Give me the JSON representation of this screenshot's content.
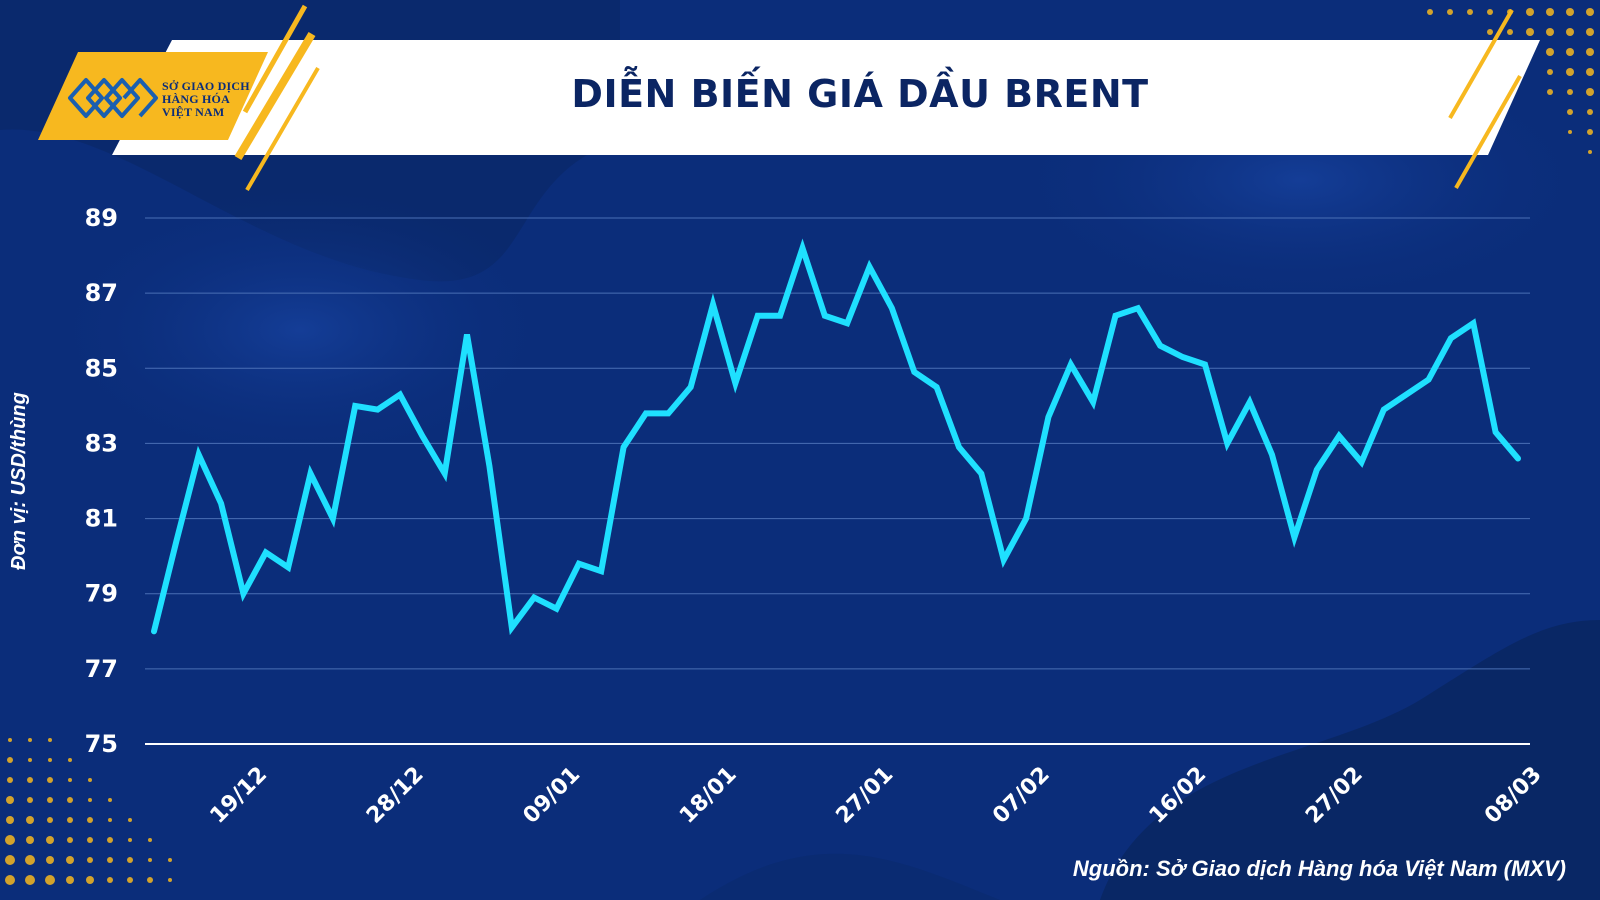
{
  "header": {
    "logo_lines": [
      "SỞ GIAO DỊCH",
      "HÀNG HÓA",
      "VIỆT NAM"
    ],
    "title": "DIỄN BIẾN GIÁ DẦU BRENT"
  },
  "footer": {
    "source": "Nguồn: Sở Giao dịch Hàng hóa Việt Nam (MXV)"
  },
  "colors": {
    "background": "#0b2d7a",
    "line": "#1fe0ff",
    "accent": "#f7b81f",
    "grid": "#4a6fb5"
  },
  "chart_data": {
    "type": "line",
    "title": "DIỄN BIẾN GIÁ DẦU BRENT",
    "ylabel": "Đơn vị: USD/thùng",
    "xlabel": "",
    "ylim": [
      75,
      89
    ],
    "yticks": [
      75,
      77,
      79,
      81,
      83,
      85,
      87,
      89
    ],
    "xtick_labels": [
      "19/12",
      "28/12",
      "09/01",
      "18/01",
      "27/01",
      "07/02",
      "16/02",
      "27/02",
      "08/03"
    ],
    "xtick_indices": [
      4,
      11,
      18,
      25,
      32,
      39,
      46,
      53,
      61
    ],
    "grid": true,
    "series": [
      {
        "values": [
          78.0,
          80.4,
          82.7,
          81.4,
          79.0,
          80.1,
          79.7,
          82.2,
          81.0,
          84.0,
          83.9,
          84.3,
          83.2,
          82.2,
          85.9,
          82.4,
          78.1,
          78.9,
          78.6,
          79.8,
          79.6,
          82.9,
          83.8,
          83.8,
          84.5,
          86.7,
          84.6,
          86.4,
          86.4,
          88.2,
          86.4,
          86.2,
          87.7,
          86.6,
          84.9,
          84.5,
          82.9,
          82.2,
          79.9,
          81.0,
          83.7,
          85.1,
          84.1,
          86.4,
          86.6,
          85.6,
          85.3,
          85.1,
          83.0,
          84.1,
          82.7,
          80.5,
          82.3,
          83.2,
          82.5,
          83.9,
          84.3,
          84.7,
          85.8,
          86.2,
          83.3,
          82.6
        ]
      }
    ]
  }
}
